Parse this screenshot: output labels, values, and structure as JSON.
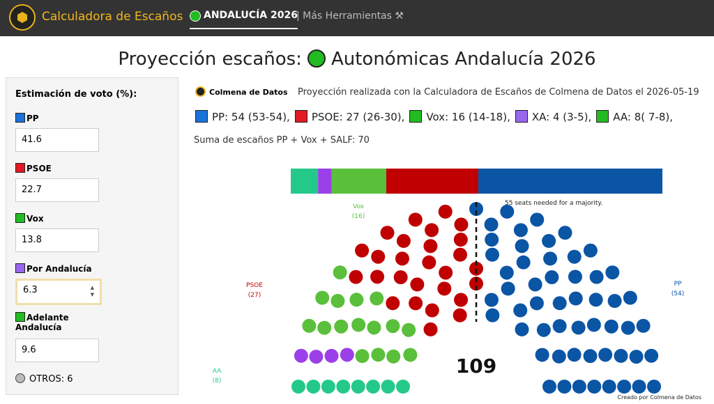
{
  "header": {
    "app_title": "Calculadora de Escaños",
    "nav": [
      "ANDALUCÍA 2026",
      "| Más Herramientas ⚒"
    ]
  },
  "title": {
    "left": "Proyección escaños:",
    "right": "Autonómicas Andalucía 2026"
  },
  "sidebar": {
    "heading": "Estimación de voto (%):",
    "fields": [
      {
        "label": "PP",
        "value": "41.6",
        "color": "#1a73d9"
      },
      {
        "label": "PSOE",
        "value": "22.7",
        "color": "#e01b24"
      },
      {
        "label": "Vox",
        "value": "13.8",
        "color": "#22bb22"
      },
      {
        "label": "Por Andalucía",
        "value": "6.3",
        "color": "#9966ee"
      },
      {
        "label": "Adelante Andalucía",
        "value": "9.6",
        "color": "#22bb22"
      }
    ],
    "others": "OTROS: 6"
  },
  "source": {
    "name": "Colmena de Datos",
    "note": "Proyección realizada con la Calculadora de Escaños de Colmena de Datos el 2026-05-19"
  },
  "sum_line": "Suma de escaños PP + Vox + SALF: 70",
  "chart_data": {
    "type": "parliament",
    "total": 109,
    "majority_label": "55 seats needed for a majority.",
    "parties": [
      {
        "name": "PP",
        "seats": 54,
        "seat_label": "(54)",
        "legend": "PP: 54 (53-54),",
        "color": "#0b55a5",
        "legend_color": "#1a73d9"
      },
      {
        "name": "PSOE",
        "seats": 27,
        "seat_label": "(27)",
        "legend": "PSOE: 27 (26-30),",
        "color": "#c00000",
        "legend_color": "#e01b24"
      },
      {
        "name": "Vox",
        "seats": 16,
        "seat_label": "(16)",
        "legend": "Vox: 16 (14-18),",
        "color": "#5abf3b",
        "legend_color": "#22bb22"
      },
      {
        "name": "XA",
        "seats": 4,
        "legend": "XA: 4 (3-5),",
        "color": "#9b40e8",
        "legend_color": "#9966ee"
      },
      {
        "name": "AA",
        "seats": 8,
        "seat_label": "(8)",
        "legend": "AA: 8( 7-8),",
        "color": "#24c98a",
        "legend_color": "#22bb22"
      }
    ]
  },
  "footer": {
    "prefix": "Creado por",
    "name": "Colmena de Datos"
  }
}
